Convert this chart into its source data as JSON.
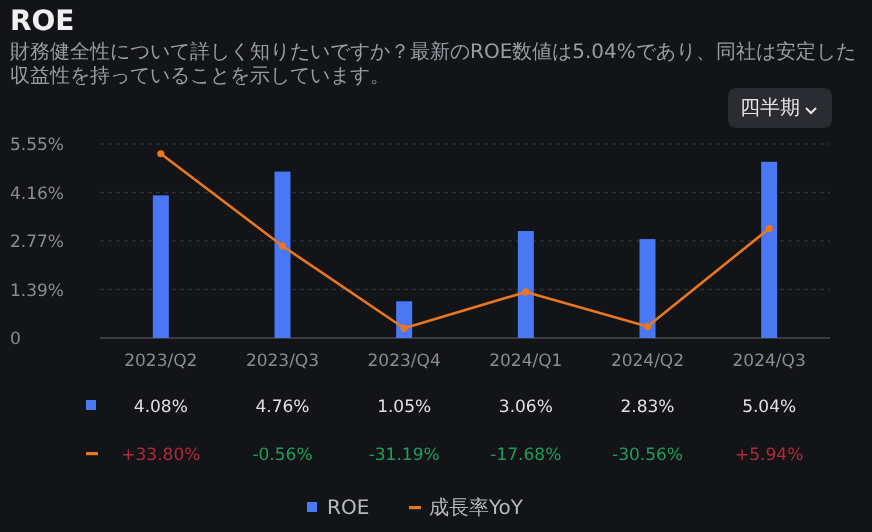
{
  "chart_data": {
    "type": "bar",
    "title": "ROE",
    "subtitle": "財務健全性について詳しく知りたいですか？最新のROE数値は5.04%であり、同社は安定した収益性を持っていることを示しています。",
    "annotations": [
      "四半期"
    ],
    "categories": [
      "2023/Q2",
      "2023/Q3",
      "2023/Q4",
      "2024/Q1",
      "2024/Q2",
      "2024/Q3"
    ],
    "series": [
      {
        "name": "ROE",
        "color": "#4a78f5",
        "values": [
          4.08,
          4.76,
          1.05,
          3.06,
          2.83,
          5.04
        ],
        "value_labels": [
          "4.08%",
          "4.76%",
          "1.05%",
          "3.06%",
          "2.83%",
          "5.04%"
        ]
      },
      {
        "name": "成長率YoY",
        "type": "line",
        "axis": "y2",
        "color": "#e8771f",
        "values": [
          33.8,
          -0.56,
          -31.19,
          -17.68,
          -30.56,
          5.94
        ],
        "value_labels": [
          "+33.80%",
          "-0.56%",
          "-31.19%",
          "-17.68%",
          "-30.56%",
          "+5.94%"
        ]
      }
    ],
    "ylim": [
      0,
      5.55
    ],
    "yticks": [
      0,
      {
        "value": 1.3875,
        "label": "1.39%"
      },
      {
        "value": 2.775,
        "label": "2.77%"
      },
      {
        "value": 4.1625,
        "label": "4.16%"
      },
      {
        "value": 5.55,
        "label": "5.55%"
      }
    ],
    "grid": "y",
    "legend": "bottom",
    "marker": "circle"
  }
}
